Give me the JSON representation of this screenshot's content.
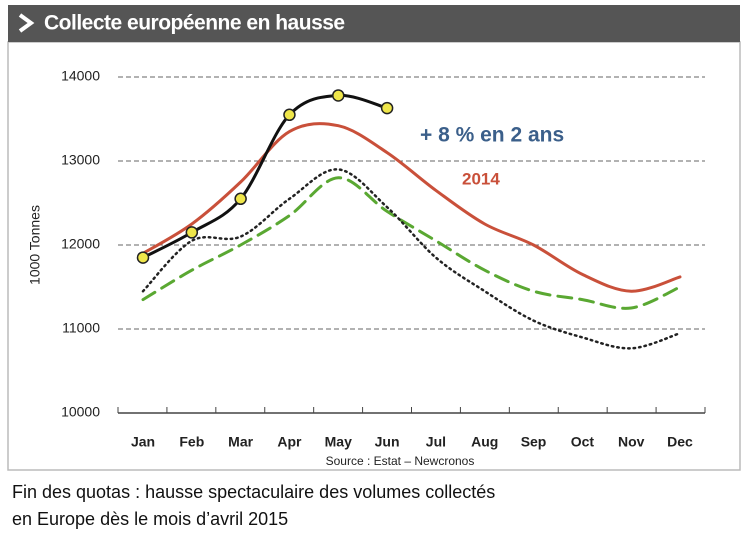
{
  "chart_data": {
    "type": "line",
    "title": "Collecte européenne en hausse",
    "y_label": "1000 Tonnes",
    "annotation": "+ 8 % en 2 ans",
    "source": "Source : Estat – Newcronos",
    "categories": [
      "Jan",
      "Feb",
      "Mar",
      "Apr",
      "May",
      "Jun",
      "Jul",
      "Aug",
      "Sep",
      "Oct",
      "Nov",
      "Dec"
    ],
    "series": [
      {
        "color": "#5aa832",
        "style": "dashed",
        "values": [
          11350,
          11700,
          12000,
          12350,
          12800,
          12400,
          12050,
          11700,
          11450,
          11350,
          11250,
          11500
        ]
      },
      {
        "color": "#222222",
        "style": "dotted",
        "values": [
          11450,
          12050,
          12100,
          12550,
          12900,
          12450,
          11850,
          11450,
          11100,
          10900,
          10770,
          10950
        ]
      },
      {
        "name": "2014",
        "color": "#c9503a",
        "style": "solid",
        "values": [
          11900,
          12250,
          12750,
          13350,
          13420,
          13100,
          12650,
          12250,
          12000,
          11650,
          11450,
          11620
        ]
      },
      {
        "color": "#111111",
        "style": "solid",
        "markers": true,
        "marker_color": "#efe64a",
        "values": [
          11850,
          12150,
          12550,
          13550,
          13780,
          13630,
          null,
          null,
          null,
          null,
          null,
          null
        ]
      }
    ],
    "ylim": [
      10000,
      14000
    ],
    "yticks": [
      10000,
      11000,
      12000,
      13000,
      14000
    ],
    "grid": true
  },
  "caption": [
    "Fin des quotas : hausse spectaculaire des volumes collectés",
    "en Europe dès le mois d’avril 2015"
  ]
}
